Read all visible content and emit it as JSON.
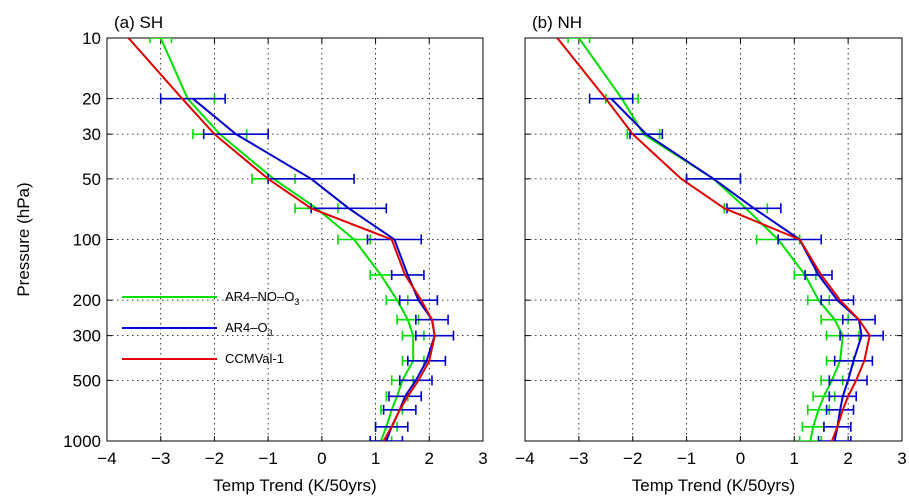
{
  "chart_data": [
    {
      "type": "line",
      "title": "(a) SH",
      "xlabel": "Temp Trend (K/50yrs)",
      "ylabel": "Pressure (hPa)",
      "xlim": [
        -4,
        3
      ],
      "ylim": [
        10,
        1000
      ],
      "y_scale": "log",
      "y_reversed": true,
      "x_ticks": [
        "−4",
        "−3",
        "−2",
        "−1",
        "0",
        "1",
        "2",
        "3"
      ],
      "y_ticks": [
        "10",
        "20",
        "30",
        "50",
        "100",
        "200",
        "300",
        "500",
        "1000"
      ],
      "grid": true,
      "legend_position": "left",
      "legend": [
        {
          "label_main": "AR4–NO–O",
          "label_sub": "3",
          "color": "#00e000"
        },
        {
          "label_main": "AR4–O",
          "label_sub": "3",
          "color": "#0000cc"
        },
        {
          "label_main": "CCMVal-1",
          "label_sub": "",
          "color": "#e00000"
        }
      ],
      "series": [
        {
          "color": "#00e000",
          "points": [
            {
              "p": 10,
              "x": -3.0,
              "err": 0.2
            },
            {
              "p": 20,
              "x": -2.5,
              "err": 0.5
            },
            {
              "p": 30,
              "x": -1.9,
              "err": 0.5
            },
            {
              "p": 50,
              "x": -0.9,
              "err": 0.4
            },
            {
              "p": 70,
              "x": -0.1,
              "err": 0.4
            },
            {
              "p": 100,
              "x": 0.6,
              "err": 0.3
            },
            {
              "p": 150,
              "x": 1.1,
              "err": 0.2
            },
            {
              "p": 200,
              "x": 1.4,
              "err": 0.2
            },
            {
              "p": 250,
              "x": 1.6,
              "err": 0.2
            },
            {
              "p": 300,
              "x": 1.7,
              "err": 0.2
            },
            {
              "p": 400,
              "x": 1.7,
              "err": 0.2
            },
            {
              "p": 500,
              "x": 1.5,
              "err": 0.2
            },
            {
              "p": 600,
              "x": 1.4,
              "err": 0.2
            },
            {
              "p": 700,
              "x": 1.3,
              "err": 0.2
            },
            {
              "p": 850,
              "x": 1.2,
              "err": 0.2
            },
            {
              "p": 1000,
              "x": 1.1,
              "err": 0.2
            }
          ]
        },
        {
          "color": "#0000cc",
          "points": [
            {
              "p": 20,
              "x": -2.4,
              "err": 0.6
            },
            {
              "p": 30,
              "x": -1.6,
              "err": 0.6
            },
            {
              "p": 50,
              "x": -0.2,
              "err": 0.8
            },
            {
              "p": 70,
              "x": 0.5,
              "err": 0.7
            },
            {
              "p": 100,
              "x": 1.35,
              "err": 0.5
            },
            {
              "p": 150,
              "x": 1.6,
              "err": 0.3
            },
            {
              "p": 200,
              "x": 1.8,
              "err": 0.35
            },
            {
              "p": 250,
              "x": 2.05,
              "err": 0.3
            },
            {
              "p": 300,
              "x": 2.1,
              "err": 0.35
            },
            {
              "p": 400,
              "x": 1.95,
              "err": 0.35
            },
            {
              "p": 500,
              "x": 1.75,
              "err": 0.3
            },
            {
              "p": 600,
              "x": 1.55,
              "err": 0.3
            },
            {
              "p": 700,
              "x": 1.45,
              "err": 0.3
            },
            {
              "p": 850,
              "x": 1.3,
              "err": 0.3
            },
            {
              "p": 1000,
              "x": 1.2,
              "err": 0.3
            }
          ]
        },
        {
          "color": "#e00000",
          "points": [
            {
              "p": 10,
              "x": -3.6
            },
            {
              "p": 20,
              "x": -2.6
            },
            {
              "p": 30,
              "x": -2.0
            },
            {
              "p": 50,
              "x": -1.0
            },
            {
              "p": 70,
              "x": -0.2
            },
            {
              "p": 100,
              "x": 1.3
            },
            {
              "p": 150,
              "x": 1.55
            },
            {
              "p": 200,
              "x": 1.85
            },
            {
              "p": 250,
              "x": 2.05
            },
            {
              "p": 300,
              "x": 2.1
            },
            {
              "p": 400,
              "x": 2.0
            },
            {
              "p": 500,
              "x": 1.8
            },
            {
              "p": 600,
              "x": 1.6
            },
            {
              "p": 700,
              "x": 1.45
            },
            {
              "p": 850,
              "x": 1.3
            },
            {
              "p": 1000,
              "x": 1.15
            }
          ]
        }
      ]
    },
    {
      "type": "line",
      "title": "(b) NH",
      "xlabel": "Temp Trend (K/50yrs)",
      "ylabel": "",
      "xlim": [
        -4,
        3
      ],
      "ylim": [
        10,
        1000
      ],
      "y_scale": "log",
      "y_reversed": true,
      "x_ticks": [
        "−4",
        "−3",
        "−2",
        "−1",
        "0",
        "1",
        "2",
        "3"
      ],
      "y_ticks": [],
      "grid": true,
      "series": [
        {
          "color": "#00e000",
          "points": [
            {
              "p": 10,
              "x": -3.0,
              "err": 0.2
            },
            {
              "p": 20,
              "x": -2.2,
              "err": 0.3
            },
            {
              "p": 30,
              "x": -1.8,
              "err": 0.3
            },
            {
              "p": 50,
              "x": -0.5,
              "err": 0.5
            },
            {
              "p": 70,
              "x": 0.1,
              "err": 0.4
            },
            {
              "p": 100,
              "x": 0.7,
              "err": 0.4
            },
            {
              "p": 150,
              "x": 1.2,
              "err": 0.2
            },
            {
              "p": 200,
              "x": 1.45,
              "err": 0.2
            },
            {
              "p": 250,
              "x": 1.75,
              "err": 0.25
            },
            {
              "p": 300,
              "x": 1.9,
              "err": 0.3
            },
            {
              "p": 400,
              "x": 1.85,
              "err": 0.25
            },
            {
              "p": 500,
              "x": 1.7,
              "err": 0.2
            },
            {
              "p": 600,
              "x": 1.55,
              "err": 0.2
            },
            {
              "p": 700,
              "x": 1.45,
              "err": 0.2
            },
            {
              "p": 850,
              "x": 1.35,
              "err": 0.2
            },
            {
              "p": 1000,
              "x": 1.3,
              "err": 0.2
            }
          ]
        },
        {
          "color": "#0000cc",
          "points": [
            {
              "p": 20,
              "x": -2.4,
              "err": 0.4
            },
            {
              "p": 30,
              "x": -1.75,
              "err": 0.3
            },
            {
              "p": 50,
              "x": -0.5,
              "err": 0.5
            },
            {
              "p": 70,
              "x": 0.25,
              "err": 0.5
            },
            {
              "p": 100,
              "x": 1.1,
              "err": 0.4
            },
            {
              "p": 150,
              "x": 1.45,
              "err": 0.25
            },
            {
              "p": 200,
              "x": 1.8,
              "err": 0.3
            },
            {
              "p": 250,
              "x": 2.2,
              "err": 0.3
            },
            {
              "p": 300,
              "x": 2.25,
              "err": 0.4
            },
            {
              "p": 400,
              "x": 2.1,
              "err": 0.35
            },
            {
              "p": 500,
              "x": 2.0,
              "err": 0.35
            },
            {
              "p": 600,
              "x": 1.9,
              "err": 0.25
            },
            {
              "p": 700,
              "x": 1.85,
              "err": 0.25
            },
            {
              "p": 850,
              "x": 1.8,
              "err": 0.25
            },
            {
              "p": 1000,
              "x": 1.75,
              "err": 0.3
            }
          ]
        },
        {
          "color": "#e00000",
          "points": [
            {
              "p": 10,
              "x": -3.4
            },
            {
              "p": 20,
              "x": -2.5
            },
            {
              "p": 30,
              "x": -2.0
            },
            {
              "p": 50,
              "x": -1.1
            },
            {
              "p": 70,
              "x": -0.3
            },
            {
              "p": 100,
              "x": 1.1
            },
            {
              "p": 150,
              "x": 1.5
            },
            {
              "p": 200,
              "x": 1.85
            },
            {
              "p": 250,
              "x": 2.2
            },
            {
              "p": 300,
              "x": 2.4
            },
            {
              "p": 400,
              "x": 2.3
            },
            {
              "p": 500,
              "x": 2.15
            },
            {
              "p": 600,
              "x": 2.0
            },
            {
              "p": 700,
              "x": 1.9
            },
            {
              "p": 850,
              "x": 1.8
            },
            {
              "p": 1000,
              "x": 1.7
            }
          ]
        }
      ]
    }
  ]
}
